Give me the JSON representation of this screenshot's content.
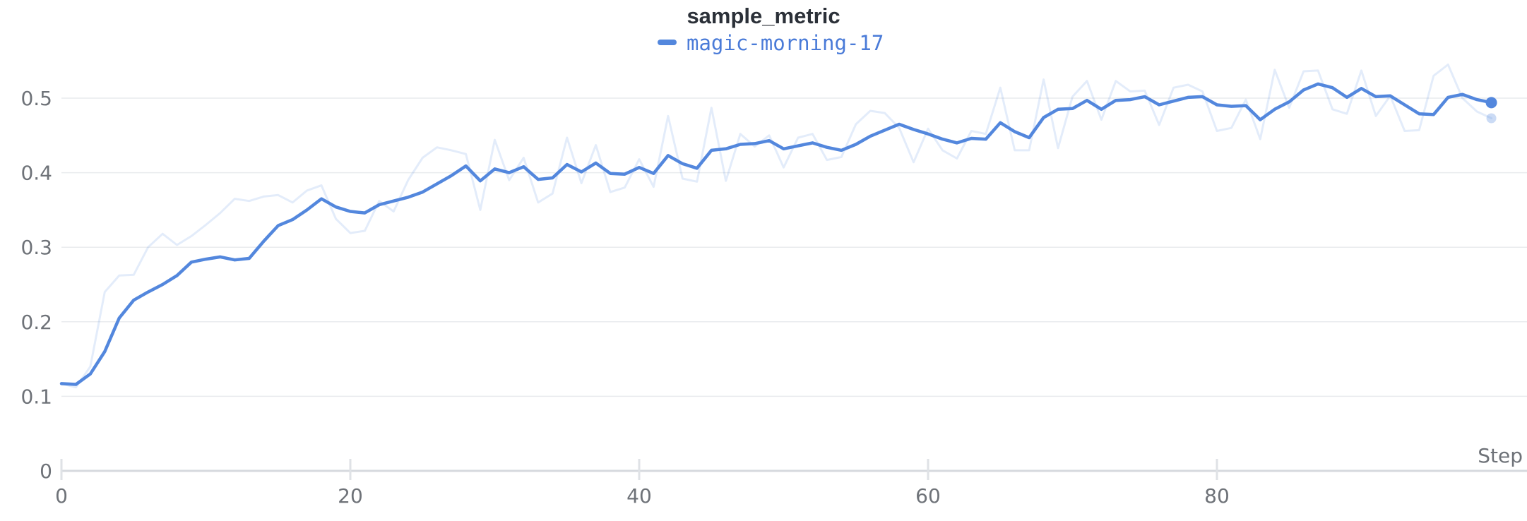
{
  "header": {
    "title": "sample_metric"
  },
  "legend": {
    "entries": [
      {
        "label": "magic-morning-17",
        "color": "#5387dd"
      }
    ]
  },
  "chart_data": {
    "type": "line",
    "title": "sample_metric",
    "xlabel": "Step",
    "ylabel": "",
    "xlim": [
      0,
      99
    ],
    "ylim": [
      0,
      0.55
    ],
    "grid": true,
    "legend_position": "top-center",
    "x_ticks": [
      0,
      20,
      40,
      60,
      80
    ],
    "y_ticks": [
      0,
      0.1,
      0.2,
      0.3,
      0.4,
      0.5
    ],
    "y_tick_labels": [
      "0",
      "0.1",
      "0.2",
      "0.3",
      "0.4",
      "0.5"
    ],
    "x": [
      0,
      1,
      2,
      3,
      4,
      5,
      6,
      7,
      8,
      9,
      10,
      11,
      12,
      13,
      14,
      15,
      16,
      17,
      18,
      19,
      20,
      21,
      22,
      23,
      24,
      25,
      26,
      27,
      28,
      29,
      30,
      31,
      32,
      33,
      34,
      35,
      36,
      37,
      38,
      39,
      40,
      41,
      42,
      43,
      44,
      45,
      46,
      47,
      48,
      49,
      50,
      51,
      52,
      53,
      54,
      55,
      56,
      57,
      58,
      59,
      60,
      61,
      62,
      63,
      64,
      65,
      66,
      67,
      68,
      69,
      70,
      71,
      72,
      73,
      74,
      75,
      76,
      77,
      78,
      79,
      80,
      81,
      82,
      83,
      84,
      85,
      86,
      87,
      88,
      89,
      90,
      91,
      92,
      93,
      94,
      95,
      96,
      97,
      98,
      99
    ],
    "series": [
      {
        "name": "magic-morning-17",
        "role": "smoothed",
        "color": "#5387dd",
        "opacity": 1,
        "stroke_width": 4.5,
        "end_marker": true,
        "values": [
          0.117,
          0.116,
          0.13,
          0.16,
          0.205,
          0.229,
          0.24,
          0.25,
          0.262,
          0.28,
          0.284,
          0.287,
          0.283,
          0.285,
          0.308,
          0.329,
          0.337,
          0.35,
          0.365,
          0.354,
          0.348,
          0.346,
          0.357,
          0.362,
          0.367,
          0.374,
          0.385,
          0.396,
          0.409,
          0.389,
          0.405,
          0.4,
          0.408,
          0.391,
          0.393,
          0.411,
          0.401,
          0.413,
          0.399,
          0.398,
          0.407,
          0.399,
          0.423,
          0.412,
          0.406,
          0.43,
          0.432,
          0.438,
          0.439,
          0.443,
          0.432,
          0.436,
          0.44,
          0.434,
          0.43,
          0.438,
          0.449,
          0.457,
          0.465,
          0.458,
          0.452,
          0.445,
          0.44,
          0.446,
          0.445,
          0.467,
          0.455,
          0.447,
          0.474,
          0.485,
          0.486,
          0.497,
          0.485,
          0.497,
          0.498,
          0.502,
          0.491,
          0.496,
          0.501,
          0.502,
          0.491,
          0.489,
          0.49,
          0.471,
          0.485,
          0.495,
          0.511,
          0.519,
          0.514,
          0.501,
          0.513,
          0.502,
          0.503,
          0.491,
          0.479,
          0.478,
          0.501,
          0.505,
          0.498,
          0.494
        ]
      },
      {
        "name": "magic-morning-17 (original)",
        "role": "original",
        "color": "#5387dd",
        "opacity": 0.16,
        "stroke_width": 3,
        "end_marker": true,
        "values": [
          0.117,
          0.112,
          0.14,
          0.24,
          0.262,
          0.263,
          0.3,
          0.318,
          0.303,
          0.315,
          0.33,
          0.346,
          0.365,
          0.362,
          0.368,
          0.37,
          0.36,
          0.376,
          0.383,
          0.338,
          0.319,
          0.322,
          0.362,
          0.348,
          0.39,
          0.42,
          0.434,
          0.43,
          0.425,
          0.35,
          0.444,
          0.39,
          0.42,
          0.36,
          0.372,
          0.447,
          0.386,
          0.437,
          0.374,
          0.38,
          0.418,
          0.381,
          0.476,
          0.392,
          0.388,
          0.487,
          0.389,
          0.452,
          0.435,
          0.45,
          0.407,
          0.447,
          0.452,
          0.417,
          0.421,
          0.465,
          0.483,
          0.48,
          0.46,
          0.414,
          0.459,
          0.43,
          0.419,
          0.456,
          0.452,
          0.514,
          0.43,
          0.43,
          0.525,
          0.433,
          0.502,
          0.523,
          0.471,
          0.523,
          0.509,
          0.51,
          0.464,
          0.514,
          0.518,
          0.509,
          0.456,
          0.46,
          0.498,
          0.445,
          0.538,
          0.487,
          0.536,
          0.537,
          0.485,
          0.479,
          0.537,
          0.476,
          0.503,
          0.456,
          0.457,
          0.53,
          0.545,
          0.5,
          0.482,
          0.473
        ]
      }
    ],
    "colors": {
      "gridline": "#e9ebee",
      "axis_line": "#d6d9de",
      "tick_mark": "#dfe2e6",
      "tick_label": "#6e7278",
      "title": "#2b3038",
      "series_blue": "#5387dd"
    }
  }
}
